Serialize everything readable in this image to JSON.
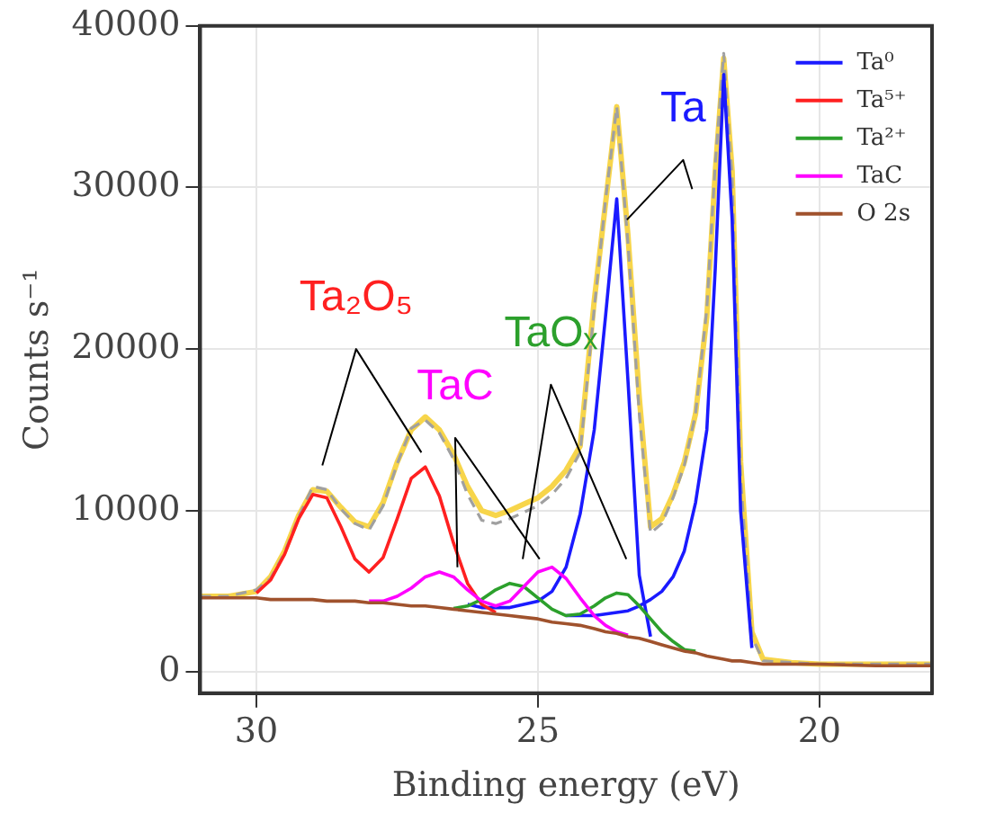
{
  "chart_data": {
    "type": "line",
    "xlabel": "Binding energy (eV)",
    "ylabel": "Counts s⁻¹",
    "x": [
      31,
      30.5,
      30,
      29.75,
      29.5,
      29.25,
      29,
      28.75,
      28.5,
      28.25,
      28,
      27.75,
      27.5,
      27.25,
      27,
      26.75,
      26.5,
      26.25,
      26,
      25.75,
      25.5,
      25.25,
      25,
      24.75,
      24.5,
      24.25,
      24,
      23.8,
      23.6,
      23.4,
      23.2,
      23,
      22.8,
      22.6,
      22.4,
      22.2,
      22,
      21.85,
      21.7,
      21.55,
      21.4,
      21.2,
      21,
      20.5,
      20,
      19,
      18
    ],
    "series": [
      {
        "color": "#f7d54a",
        "values": [
          4700,
          4700,
          5000,
          5900,
          7500,
          9700,
          11300,
          11200,
          10200,
          9300,
          9000,
          10500,
          13000,
          15000,
          15800,
          15000,
          13500,
          11500,
          10000,
          9700,
          10000,
          10400,
          10800,
          11500,
          12500,
          14000,
          23000,
          29000,
          35000,
          27000,
          17000,
          9000,
          9500,
          11000,
          13000,
          16000,
          22000,
          31000,
          38000,
          31000,
          13000,
          2500,
          800,
          600,
          500,
          500,
          500
        ]
      },
      {
        "color": "#a0a0a0",
        "line_style": "dashed",
        "values": [
          4700,
          4700,
          5100,
          5800,
          7400,
          9600,
          11500,
          11300,
          10100,
          9200,
          8800,
          10300,
          12900,
          15100,
          15600,
          14800,
          13200,
          11000,
          9400,
          9200,
          9500,
          9900,
          10300,
          11000,
          12000,
          13600,
          22500,
          29200,
          35000,
          26500,
          16000,
          8600,
          9200,
          10800,
          12800,
          16000,
          22500,
          31500,
          38300,
          30500,
          12000,
          2200,
          700,
          600,
          500,
          500,
          500
        ]
      },
      {
        "name": "Ta⁰",
        "color": "#1a1aff",
        "values": [
          null,
          null,
          null,
          null,
          null,
          null,
          null,
          null,
          null,
          null,
          null,
          null,
          null,
          null,
          null,
          null,
          null,
          4200,
          4000,
          4000,
          4000,
          4200,
          4400,
          5000,
          6500,
          9800,
          15000,
          22000,
          29300,
          18000,
          6000,
          2200,
          null,
          null,
          null,
          null,
          null,
          null,
          null,
          null,
          null,
          null,
          null,
          null,
          null,
          null,
          null
        ]
      },
      {
        "color": "#1a1aff",
        "values": [
          null,
          null,
          null,
          null,
          null,
          null,
          null,
          null,
          null,
          null,
          null,
          null,
          null,
          null,
          null,
          null,
          null,
          null,
          null,
          null,
          null,
          null,
          null,
          null,
          3500,
          3500,
          3500,
          3600,
          3700,
          3800,
          4100,
          4500,
          5000,
          5900,
          7500,
          10500,
          15000,
          25000,
          37000,
          28000,
          10000,
          1500,
          null,
          null,
          null,
          null,
          null
        ]
      },
      {
        "name": "Ta⁵⁺",
        "color": "#ff2020",
        "values": [
          null,
          null,
          4900,
          5700,
          7300,
          9500,
          11000,
          10800,
          9000,
          7000,
          6200,
          7100,
          9500,
          12000,
          12700,
          10900,
          8000,
          5500,
          4200,
          3700,
          null,
          null,
          null,
          null,
          null,
          null,
          null,
          null,
          null,
          null,
          null,
          null,
          null,
          null,
          null,
          null,
          null,
          null,
          null,
          null,
          null,
          null,
          null,
          null,
          null,
          null,
          null
        ]
      },
      {
        "name": "Ta²⁺",
        "color": "#2ca02c",
        "values": [
          null,
          null,
          null,
          null,
          null,
          null,
          null,
          null,
          null,
          null,
          null,
          null,
          null,
          null,
          null,
          null,
          3950,
          4100,
          4500,
          5100,
          5500,
          5300,
          4600,
          3900,
          3500,
          3600,
          4100,
          4600,
          4900,
          4800,
          4100,
          3300,
          2500,
          1900,
          1400,
          1300,
          null,
          null,
          null,
          null,
          null,
          null,
          null,
          null,
          null,
          null,
          null
        ]
      },
      {
        "name": "TaC",
        "color": "#ff00ff",
        "values": [
          null,
          null,
          null,
          null,
          null,
          null,
          null,
          null,
          null,
          null,
          4400,
          4400,
          4700,
          5200,
          5900,
          6200,
          5900,
          5100,
          4400,
          4100,
          4400,
          5300,
          6200,
          6500,
          5800,
          4600,
          3500,
          2900,
          2500,
          2300,
          null,
          null,
          null,
          null,
          null,
          null,
          null,
          null,
          null,
          null,
          null,
          null,
          null,
          null,
          null,
          null,
          null
        ]
      },
      {
        "name": "O 2s",
        "color": "#a0522d",
        "values": [
          4600,
          4600,
          4600,
          4500,
          4500,
          4500,
          4500,
          4400,
          4400,
          4400,
          4300,
          4300,
          4200,
          4100,
          4100,
          4000,
          3900,
          3800,
          3700,
          3600,
          3500,
          3400,
          3300,
          3100,
          3000,
          2900,
          2700,
          2500,
          2400,
          2200,
          2100,
          1900,
          1700,
          1500,
          1300,
          1200,
          1000,
          900,
          800,
          700,
          700,
          600,
          500,
          500,
          500,
          400,
          400
        ]
      },
      {
        "color": "#000000",
        "x": [
          28.83,
          28.23,
          27.07
        ],
        "values": [
          12800,
          20000,
          13600
        ]
      },
      {
        "color": "#000000",
        "x": [
          26.43,
          26.47,
          24.97
        ],
        "values": [
          6500,
          14500,
          7000
        ]
      },
      {
        "color": "#000000",
        "x": [
          25.27,
          24.77,
          23.43
        ],
        "values": [
          7000,
          17800,
          7000
        ]
      },
      {
        "color": "#000000",
        "x": [
          23.42,
          22.42,
          22.26
        ],
        "values": [
          28000,
          31700,
          29900
        ]
      }
    ],
    "annotations": [
      "Ta₂O₅",
      "TaC",
      "TaOₓ",
      "Ta"
    ],
    "xlim": [
      31,
      18
    ],
    "xticks": [
      30,
      25,
      20
    ],
    "ylim": [
      -1300,
      40000
    ],
    "yticks": [
      0,
      10000,
      20000,
      30000,
      40000
    ],
    "grid": true,
    "legend": "top right",
    "marker": "none",
    "line_style": "solid"
  }
}
